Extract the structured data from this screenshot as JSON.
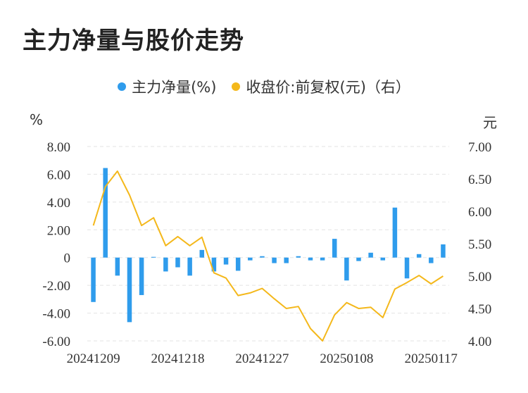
{
  "title": "主力净量与股价走势",
  "colors": {
    "bar": "#2f9cec",
    "line": "#f4b81b",
    "grid": "#e3e3e3"
  },
  "chart_data": {
    "type": "bar+line",
    "legend_position": "top-center",
    "left_unit": "%",
    "right_unit": "元",
    "series": [
      {
        "name": "主力净量(%)",
        "type": "bar",
        "axis": "left",
        "values": [
          -3.2,
          6.45,
          -1.3,
          -4.65,
          -2.7,
          0.05,
          -1.0,
          -0.7,
          -1.3,
          0.55,
          -1.0,
          -0.5,
          -0.95,
          -0.2,
          0.1,
          -0.4,
          -0.4,
          0.1,
          -0.2,
          -0.2,
          1.35,
          -1.65,
          -0.25,
          0.35,
          -0.2,
          3.6,
          -1.5,
          0.25,
          -0.4,
          0.95
        ]
      },
      {
        "name": "收盘价:前复权(元)（右）",
        "type": "line",
        "axis": "right",
        "values": [
          5.78,
          6.38,
          6.62,
          6.25,
          5.78,
          5.9,
          5.47,
          5.61,
          5.47,
          5.6,
          5.05,
          4.97,
          4.7,
          4.74,
          4.81,
          4.65,
          4.5,
          4.53,
          4.19,
          4.0,
          4.4,
          4.59,
          4.5,
          4.52,
          4.36,
          4.8,
          4.9,
          5.01,
          4.88,
          5.0
        ]
      }
    ],
    "x_tick_labels": [
      "20241209",
      "20241218",
      "20241227",
      "20250108",
      "20250117"
    ],
    "x_tick_positions": [
      0,
      7,
      14,
      21,
      28
    ],
    "y_left_ticks": [
      "8.00",
      "6.00",
      "4.00",
      "2.00",
      "0",
      "-2.00",
      "-4.00",
      "-6.00"
    ],
    "y_left_range": [
      -6,
      8
    ],
    "y_right_ticks": [
      "7.00",
      "6.50",
      "6.00",
      "5.50",
      "5.00",
      "4.50",
      "4.00"
    ],
    "y_right_range": [
      4,
      7
    ],
    "grid": true
  }
}
